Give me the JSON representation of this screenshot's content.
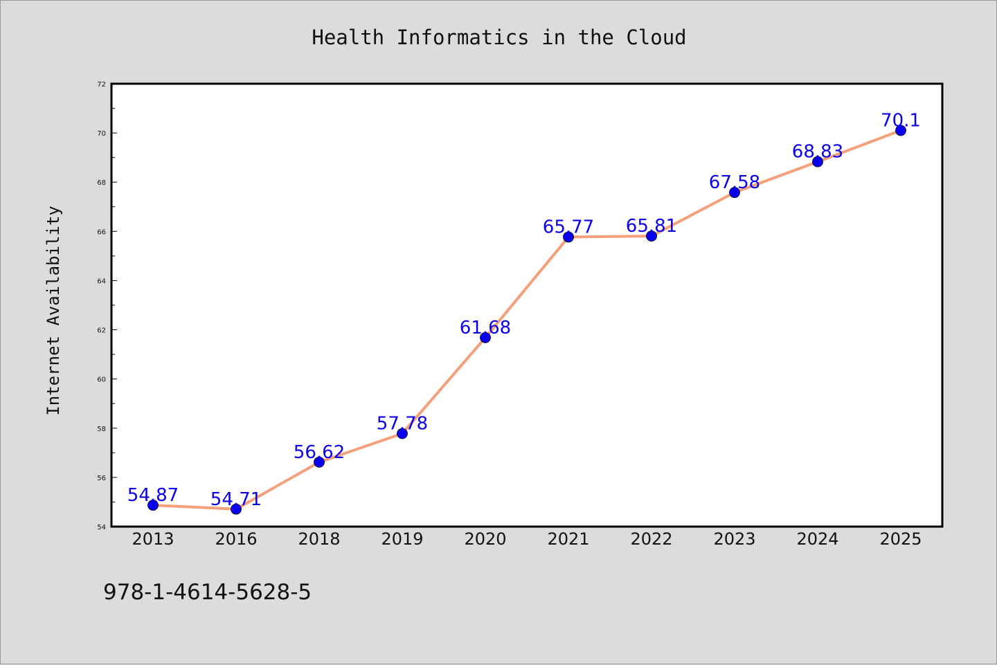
{
  "chart_data": {
    "type": "line",
    "title": "Health Informatics in the Cloud",
    "xlabel": "",
    "ylabel": "Internet Availability",
    "categories": [
      "2013",
      "2016",
      "2018",
      "2019",
      "2020",
      "2021",
      "2022",
      "2023",
      "2024",
      "2025"
    ],
    "series": [
      {
        "values": [
          54.87,
          54.71,
          56.62,
          57.78,
          61.68,
          65.77,
          65.81,
          67.58,
          68.83,
          70.1
        ],
        "data_labels": [
          "54.87",
          "54.71",
          "56.62",
          "57.78",
          "61.68",
          "65.77",
          "65.81",
          "67.58",
          "68.83",
          "70.1"
        ]
      }
    ],
    "ylim": [
      54,
      72
    ],
    "yticks": [
      "54",
      "56",
      "58",
      "60",
      "62",
      "64",
      "66",
      "68",
      "70",
      "72"
    ],
    "grid": false,
    "legend": "none",
    "colors": {
      "line": "#f4a07a",
      "marker": "#0a00f0",
      "data_label": "#0a00f0",
      "plot_background": "#ffffff",
      "figure_background": "#dcdcdc"
    }
  },
  "footer": {
    "text": "978-1-4614-5628-5"
  }
}
